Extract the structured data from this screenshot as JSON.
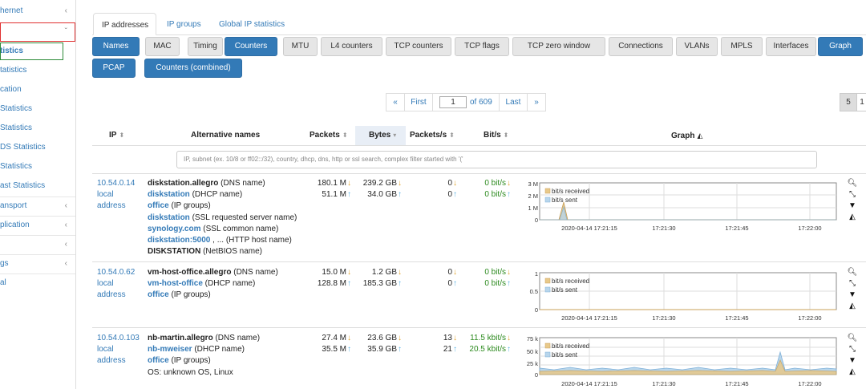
{
  "sidebar": {
    "items": [
      {
        "label": "hernet",
        "chevron": "‹"
      },
      {
        "label": "",
        "chevron": "ˇ"
      },
      {
        "label": "tistics",
        "chevron": ""
      },
      {
        "label": "tatistics",
        "chevron": ""
      },
      {
        "label": "cation",
        "chevron": ""
      },
      {
        "label": "Statistics",
        "chevron": ""
      },
      {
        "label": "Statistics",
        "chevron": ""
      },
      {
        "label": "DS Statistics",
        "chevron": ""
      },
      {
        "label": "Statistics",
        "chevron": ""
      },
      {
        "label": "ast Statistics",
        "chevron": ""
      },
      {
        "label": "ansport",
        "chevron": "‹"
      },
      {
        "label": "plication",
        "chevron": "‹"
      },
      {
        "label": "",
        "chevron": "‹"
      },
      {
        "label": "gs",
        "chevron": "‹"
      },
      {
        "label": "al",
        "chevron": ""
      }
    ]
  },
  "tabs": [
    "IP addresses",
    "IP groups",
    "Global IP statistics"
  ],
  "buttons_row1": [
    "Names",
    "MAC",
    "Timing",
    "Counters",
    "MTU",
    "L4 counters",
    "TCP counters",
    "TCP flags",
    "TCP zero window",
    "Connections",
    "VLANs",
    "MPLS",
    "Interfaces",
    "Graph"
  ],
  "buttons_row2": [
    "PCAP",
    "Counters (combined)"
  ],
  "pagination": {
    "prev": "«",
    "first": "First",
    "current": "1",
    "of": "of 609",
    "last": "Last",
    "next": "»"
  },
  "per_page": [
    "5",
    "1"
  ],
  "columns": {
    "ip": "IP",
    "alt": "Alternative names",
    "packets": "Packets",
    "bytes": "Bytes",
    "pps": "Packets/s",
    "bps": "Bit/s",
    "graph": "Graph"
  },
  "filter_placeholder": "IP, subnet (ex. 10/8 or ff02::/32), country, dhcp, dns, http or ssl search, complex filter started with '('",
  "rows": [
    {
      "ip": "10.54.0.14",
      "ip_sub1": "local",
      "ip_sub2": "address",
      "names": [
        {
          "v": "diskstation.allegro",
          "t": " (DNS name)"
        },
        {
          "v": "diskstation",
          "t": " (DHCP name)"
        },
        {
          "v": "office",
          "t": " (IP groups)"
        },
        {
          "v": "diskstation",
          "t": " (SSL requested server name)"
        },
        {
          "v": "synology.com",
          "t": " (SSL common name)"
        },
        {
          "v": "diskstation:5000",
          "t": " , ... (HTTP host name)"
        },
        {
          "v": "DISKSTATION",
          "t": " (NetBIOS name)"
        }
      ],
      "packets": [
        "180.1 M",
        "51.1 M"
      ],
      "bytes": [
        "239.2 GB",
        "34.0 GB"
      ],
      "pps": [
        "0",
        "0"
      ],
      "bps": [
        "0 bit/s",
        "0 bit/s"
      ],
      "graph": {
        "y_ticks": [
          "3 M",
          "2 M",
          "1 M",
          "0"
        ],
        "x_ticks": [
          "2020-04-14 17:21:15",
          "17:21:30",
          "17:21:45",
          "17:22:00"
        ],
        "legend": [
          "bit/s received",
          "bit/s sent"
        ]
      }
    },
    {
      "ip": "10.54.0.62",
      "ip_sub1": "local",
      "ip_sub2": "address",
      "names": [
        {
          "v": "vm-host-office.allegro",
          "t": " (DNS name)"
        },
        {
          "v": "vm-host-office",
          "t": " (DHCP name)"
        },
        {
          "v": "office",
          "t": " (IP groups)"
        }
      ],
      "packets": [
        "15.0 M",
        "128.8 M"
      ],
      "bytes": [
        "1.2 GB",
        "185.3 GB"
      ],
      "pps": [
        "0",
        "0"
      ],
      "bps": [
        "0 bit/s",
        "0 bit/s"
      ],
      "graph": {
        "y_ticks": [
          "1",
          "0.5",
          "0"
        ],
        "x_ticks": [
          "2020-04-14 17:21:15",
          "17:21:30",
          "17:21:45",
          "17:22:00"
        ],
        "legend": [
          "bit/s received",
          "bit/s sent"
        ]
      }
    },
    {
      "ip": "10.54.0.103",
      "ip_sub1": "local",
      "ip_sub2": "address",
      "names": [
        {
          "v": "nb-martin.allegro",
          "t": " (DNS name)"
        },
        {
          "v": "nb-mweiser",
          "t": " (DHCP name)"
        },
        {
          "v": "office",
          "t": " (IP groups)"
        },
        {
          "v": "",
          "t": "OS: unknown OS, Linux"
        }
      ],
      "packets": [
        "27.4 M",
        "35.5 M"
      ],
      "bytes": [
        "23.6 GB",
        "35.9 GB"
      ],
      "pps": [
        "13",
        "21"
      ],
      "bps": [
        "11.5 kbit/s",
        "20.5 kbit/s"
      ],
      "graph": {
        "y_ticks": [
          "75 k",
          "50 k",
          "25 k",
          "0"
        ],
        "x_ticks": [
          "2020-04-14 17:21:15",
          "17:21:30",
          "17:21:45",
          "17:22:00"
        ],
        "legend": [
          "bit/s received",
          "bit/s sent"
        ]
      }
    }
  ],
  "colors": {
    "primary": "#337ab7",
    "received": "#e2a32a",
    "sent": "#5ab0e2"
  },
  "icons": [
    "search-icon",
    "compress-icon",
    "caret-down-icon",
    "area-chart-icon"
  ]
}
